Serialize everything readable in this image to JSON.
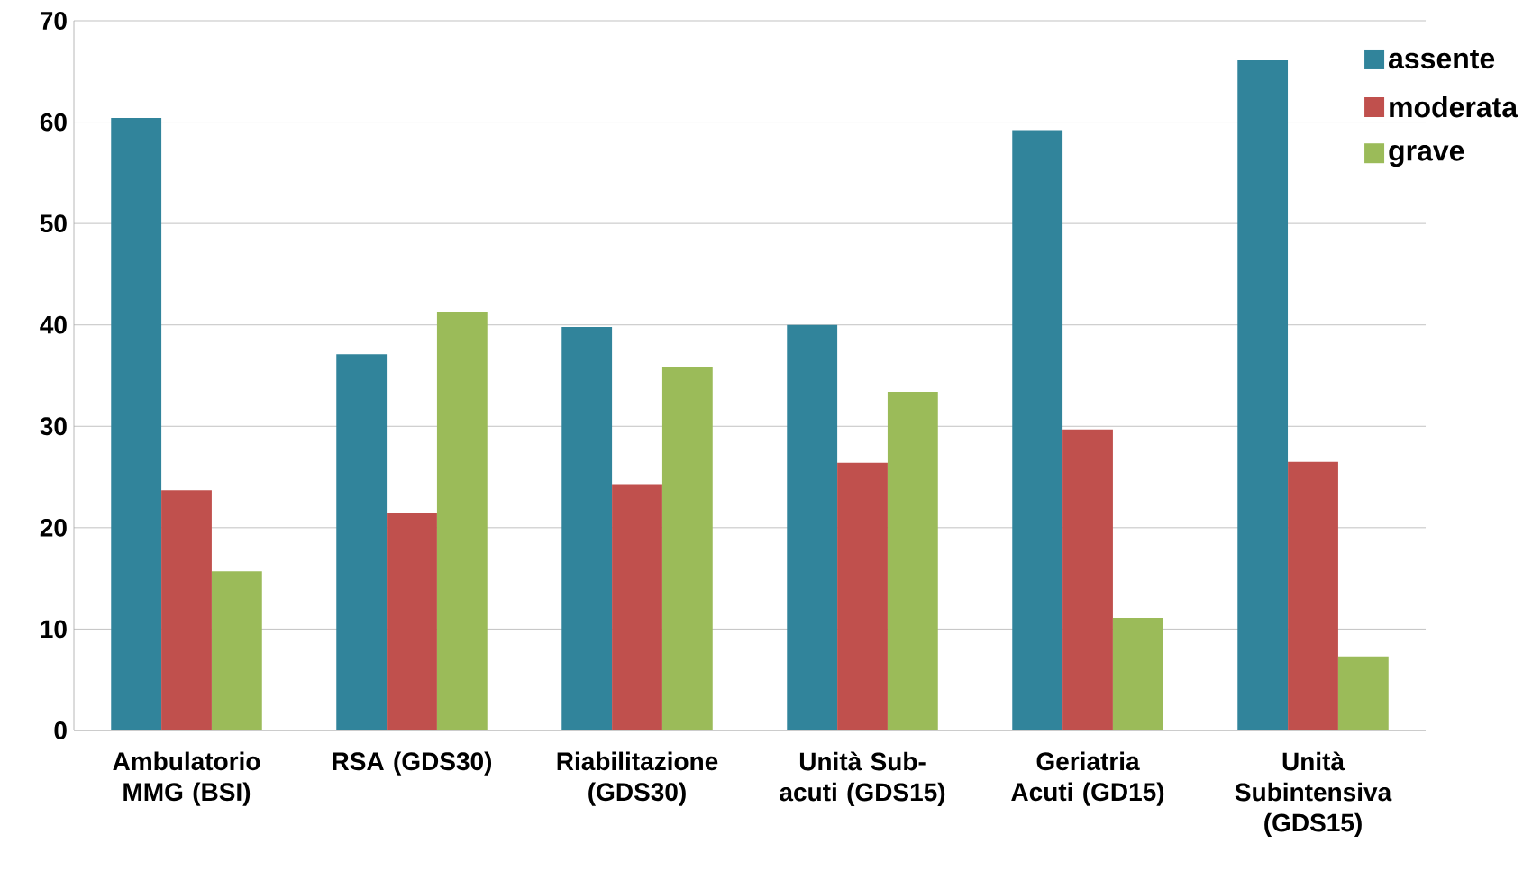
{
  "chart_data": {
    "type": "bar",
    "categories": [
      "Ambulatorio MMG (BSI)",
      "RSA (GDS30)",
      "Riabilitazione (GDS30)",
      "Unità Sub-acuti (GDS15)",
      "Geriatria Acuti (GD15)",
      "Unità Subintensiva (GDS15)"
    ],
    "series": [
      {
        "name": "assente",
        "color": "#31849b",
        "values": [
          60.4,
          37.1,
          39.8,
          40.0,
          59.2,
          66.1
        ]
      },
      {
        "name": "moderata",
        "color": "#c0504d",
        "values": [
          23.7,
          21.4,
          24.3,
          26.4,
          29.7,
          26.5
        ]
      },
      {
        "name": "grave",
        "color": "#9bbb59",
        "values": [
          15.7,
          41.3,
          35.8,
          33.4,
          11.1,
          7.3
        ]
      }
    ],
    "ylim": [
      0,
      70
    ],
    "yticks": [
      0,
      10,
      20,
      30,
      40,
      50,
      60,
      70
    ],
    "grid": "y",
    "legend": "top right"
  }
}
